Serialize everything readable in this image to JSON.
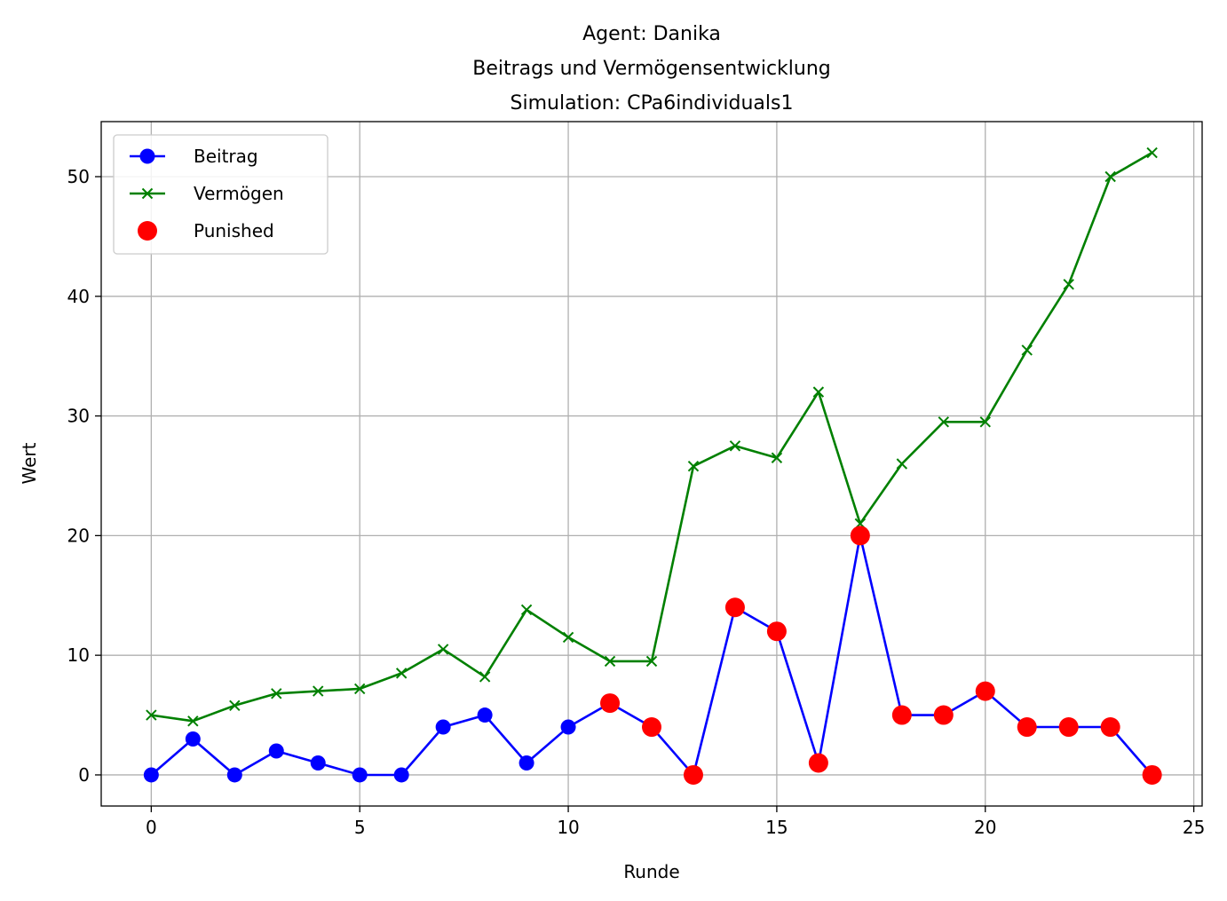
{
  "chart_data": {
    "type": "line",
    "title_lines": [
      "Agent: Danika",
      "Beitrags und Vermögensentwicklung",
      "Simulation: CPa6individuals1"
    ],
    "xlabel": "Runde",
    "ylabel": "Wert",
    "xlim": [
      -1.2,
      25.2
    ],
    "ylim": [
      -2.6,
      54.6
    ],
    "xticks": [
      0,
      5,
      10,
      15,
      20,
      25
    ],
    "yticks": [
      0,
      10,
      20,
      30,
      40,
      50
    ],
    "grid": true,
    "legend_position": "top-left",
    "series": [
      {
        "name": "Beitrag",
        "color": "#0000ff",
        "marker": "circle",
        "x": [
          0,
          1,
          2,
          3,
          4,
          5,
          6,
          7,
          8,
          9,
          10,
          11,
          12,
          13,
          14,
          15,
          16,
          17,
          18,
          19,
          20,
          21,
          22,
          23,
          24
        ],
        "y": [
          0,
          3,
          0,
          2,
          1,
          0,
          0,
          4,
          5,
          1,
          4,
          6,
          4,
          0,
          14,
          12,
          1,
          20,
          5,
          5,
          7,
          4,
          4,
          4,
          0
        ]
      },
      {
        "name": "Vermögen",
        "color": "#008000",
        "marker": "x",
        "x": [
          0,
          1,
          2,
          3,
          4,
          5,
          6,
          7,
          8,
          9,
          10,
          11,
          12,
          13,
          14,
          15,
          16,
          17,
          18,
          19,
          20,
          21,
          22,
          23,
          24
        ],
        "y": [
          5,
          4.5,
          5.8,
          6.8,
          7,
          7.2,
          8.5,
          10.5,
          8.2,
          13.8,
          11.5,
          9.5,
          9.5,
          25.8,
          27.5,
          26.5,
          32,
          21,
          26,
          29.5,
          29.5,
          35.5,
          41,
          50,
          52
        ]
      }
    ],
    "scatter": {
      "name": "Punished",
      "color": "#ff0000",
      "x": [
        11,
        12,
        13,
        14,
        15,
        16,
        17,
        18,
        19,
        20,
        21,
        22,
        23,
        24
      ],
      "y": [
        6,
        4,
        0,
        14,
        12,
        1,
        20,
        5,
        5,
        7,
        4,
        4,
        4,
        0
      ]
    }
  }
}
